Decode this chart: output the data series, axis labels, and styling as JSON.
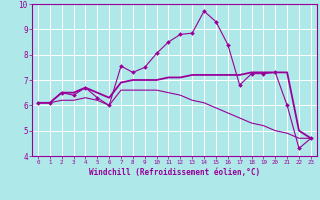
{
  "title": "",
  "xlabel": "Windchill (Refroidissement éolien,°C)",
  "ylabel": "",
  "bg_color": "#aee8e8",
  "line_color": "#990099",
  "grid_color": "#ffffff",
  "xlim": [
    -0.5,
    23.5
  ],
  "ylim": [
    4,
    10
  ],
  "yticks": [
    4,
    5,
    6,
    7,
    8,
    9,
    10
  ],
  "xticks": [
    0,
    1,
    2,
    3,
    4,
    5,
    6,
    7,
    8,
    9,
    10,
    11,
    12,
    13,
    14,
    15,
    16,
    17,
    18,
    19,
    20,
    21,
    22,
    23
  ],
  "line1_x": [
    0,
    1,
    2,
    3,
    4,
    5,
    6,
    7,
    8,
    9,
    10,
    11,
    12,
    13,
    14,
    15,
    16,
    17,
    18,
    19,
    20,
    21,
    22,
    23
  ],
  "line1_y": [
    6.1,
    6.1,
    6.5,
    6.4,
    6.7,
    6.3,
    6.0,
    7.55,
    7.3,
    7.5,
    8.05,
    8.5,
    8.8,
    8.85,
    9.72,
    9.3,
    8.4,
    6.8,
    7.25,
    7.25,
    7.3,
    6.0,
    4.3,
    4.7
  ],
  "line2_x": [
    0,
    1,
    2,
    3,
    4,
    5,
    6,
    7,
    8,
    9,
    10,
    11,
    12,
    13,
    14,
    15,
    16,
    17,
    18,
    19,
    20,
    21,
    22,
    23
  ],
  "line2_y": [
    6.1,
    6.1,
    6.5,
    6.5,
    6.7,
    6.5,
    6.3,
    6.9,
    7.0,
    7.0,
    7.0,
    7.1,
    7.1,
    7.2,
    7.2,
    7.2,
    7.2,
    7.2,
    7.3,
    7.3,
    7.3,
    7.3,
    5.0,
    4.7
  ],
  "line3_x": [
    0,
    1,
    2,
    3,
    4,
    5,
    6,
    7,
    8,
    9,
    10,
    11,
    12,
    13,
    14,
    15,
    16,
    17,
    18,
    19,
    20,
    21,
    22,
    23
  ],
  "line3_y": [
    6.1,
    6.1,
    6.2,
    6.2,
    6.3,
    6.2,
    6.0,
    6.6,
    6.6,
    6.6,
    6.6,
    6.5,
    6.4,
    6.2,
    6.1,
    5.9,
    5.7,
    5.5,
    5.3,
    5.2,
    5.0,
    4.9,
    4.7,
    4.7
  ],
  "xlabel_fontsize": 5.5,
  "xtick_fontsize": 4.2,
  "ytick_fontsize": 5.5
}
